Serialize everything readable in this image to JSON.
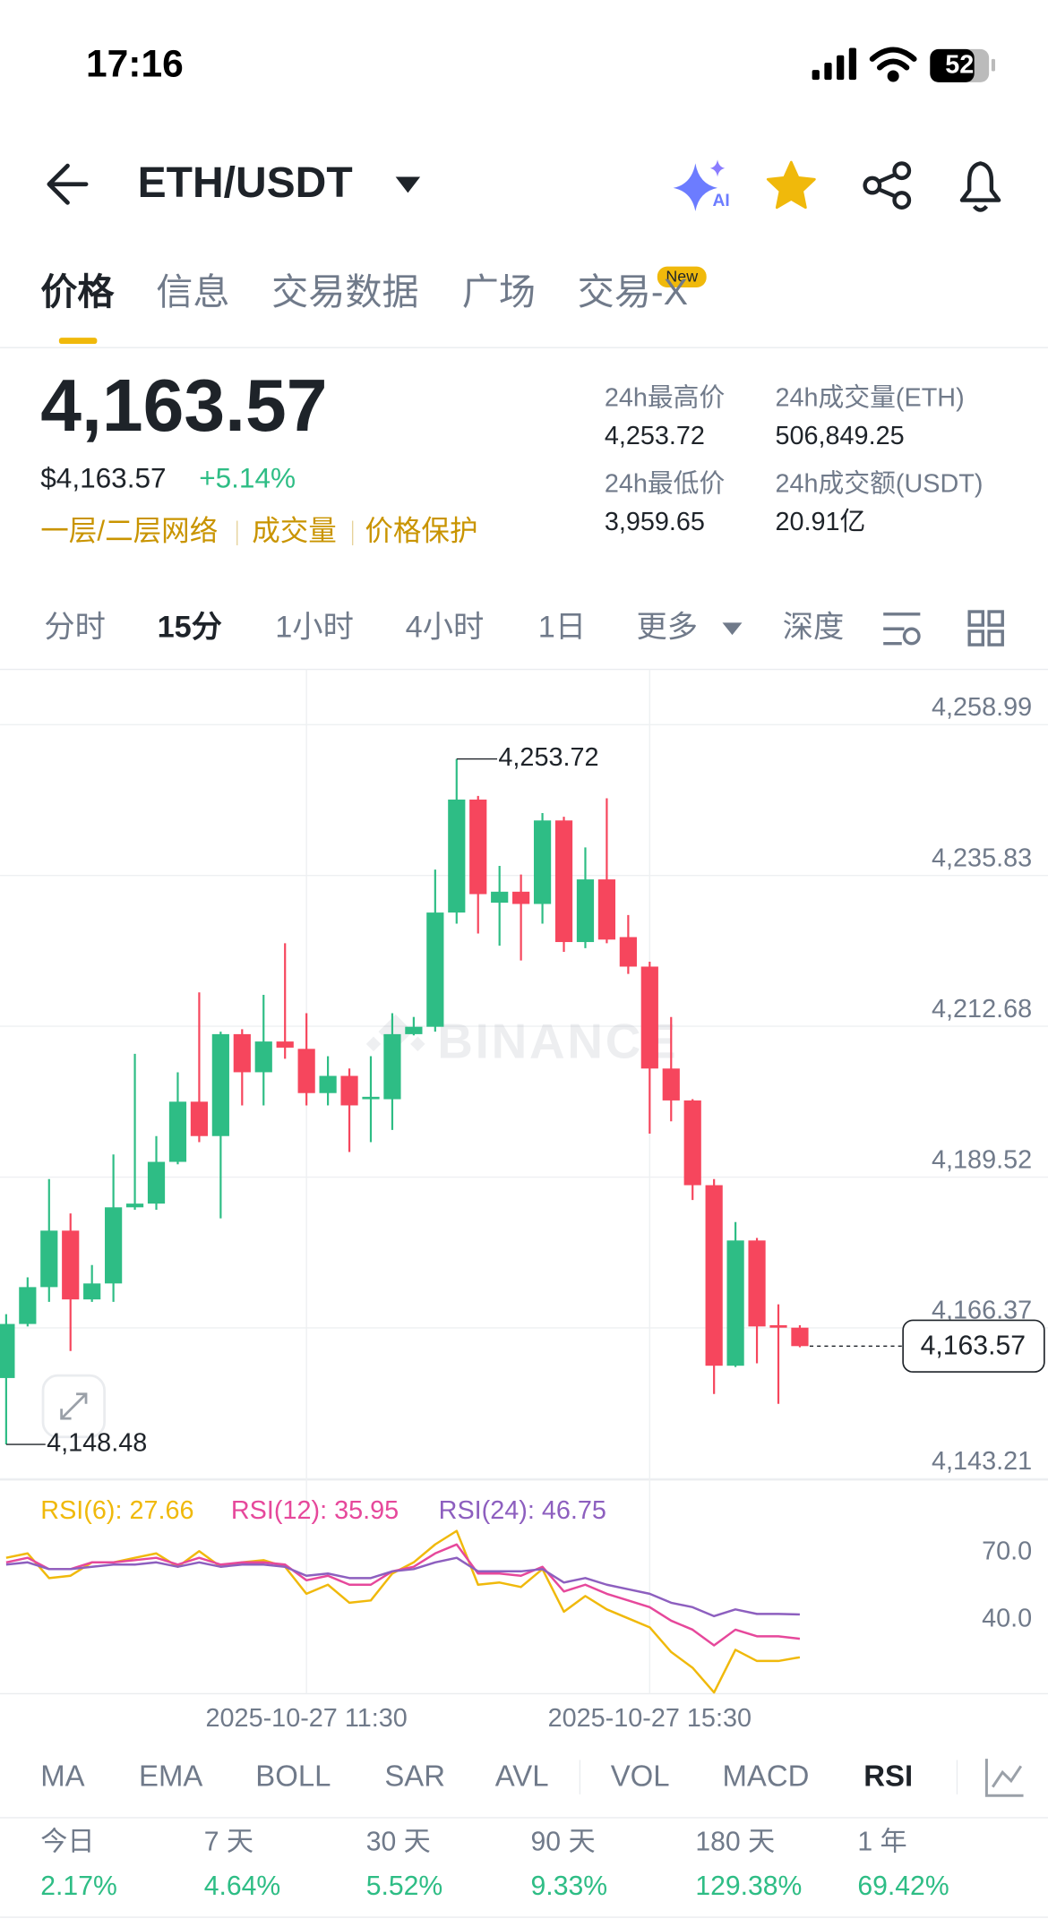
{
  "status_bar": {
    "time": "17:16",
    "battery": "52"
  },
  "header": {
    "pair": "ETH/USDT",
    "ai_badge": "AI"
  },
  "tabs": [
    "价格",
    "信息",
    "交易数据",
    "广场",
    "交易-X"
  ],
  "new_badge": "New",
  "price": {
    "last": "4,163.57",
    "usd": "$4,163.57",
    "change": "+5.14%",
    "tags": [
      "一层/二层网络",
      "成交量",
      "价格保护"
    ]
  },
  "stats": [
    {
      "label": "24h最高价",
      "value": "4,253.72"
    },
    {
      "label": "24h成交量(ETH)",
      "value": "506,849.25"
    },
    {
      "label": "24h最低价",
      "value": "3,959.65"
    },
    {
      "label": "24h成交额(USDT)",
      "value": "20.91亿"
    }
  ],
  "intervals": [
    "分时",
    "15分",
    "1小时",
    "4小时",
    "1日",
    "更多",
    "深度"
  ],
  "kline": {
    "type": "candlestick",
    "watermark": "BINANCE",
    "categories": [
      null,
      null,
      null,
      null,
      null,
      null,
      null,
      null,
      null,
      null,
      null,
      null,
      null,
      null,
      "2025-10-27 11:30",
      null,
      null,
      null,
      null,
      null,
      null,
      null,
      null,
      null,
      null,
      null,
      null,
      null,
      null,
      null,
      "2025-10-27 15:30",
      null,
      null,
      null,
      null,
      null,
      null,
      null
    ],
    "open": [
      4158.67,
      4166.97,
      4172.63,
      4181.3,
      4170.74,
      4173.19,
      4184.88,
      4185.45,
      4191.86,
      4201.1,
      4195.82,
      4211.47,
      4205.62,
      4210.34,
      4209.21,
      4202.42,
      4205.06,
      4201.48,
      4201.48,
      4211.47,
      4212.6,
      4230.14,
      4247.49,
      4231.65,
      4233.34,
      4231.46,
      4244.28,
      4225.61,
      4235.23,
      4226.37,
      4221.84,
      4206.19,
      4201.29,
      4188.28,
      4160.56,
      4179.79,
      4166.78,
      4166.4
    ],
    "high": [
      4168.48,
      4174.13,
      4189.22,
      4183.94,
      4176.02,
      4192.99,
      4208.45,
      4195.82,
      4205.62,
      4217.88,
      4211.85,
      4212.22,
      4217.5,
      4225.42,
      4214.68,
      4208.08,
      4206.19,
      4208.08,
      4214.68,
      4214.11,
      4236.74,
      4253.72,
      4248.05,
      4237.3,
      4235.98,
      4245.41,
      4244.85,
      4240.13,
      4247.68,
      4229.76,
      4222.6,
      4214.11,
      4201.48,
      4189.22,
      4182.62,
      4180.17,
      4169.99,
      4166.78
    ],
    "low": [
      4148.48,
      4166.59,
      4170.36,
      4162.82,
      4170.36,
      4170.36,
      4184.5,
      4184.5,
      4191.48,
      4194.88,
      4183.18,
      4200.53,
      4200.53,
      4207.7,
      4200.53,
      4200.53,
      4193.37,
      4194.88,
      4196.76,
      4211.28,
      4211.85,
      4228.44,
      4226.93,
      4225.05,
      4222.78,
      4228.44,
      4224.1,
      4224.67,
      4225.42,
      4220.71,
      4196.2,
      4198.08,
      4186.01,
      4156.22,
      4160.37,
      4160.93,
      4154.71,
      4163.39
    ],
    "close": [
      4166.97,
      4172.63,
      4181.3,
      4170.74,
      4173.19,
      4184.88,
      4185.45,
      4191.86,
      4201.1,
      4195.82,
      4211.47,
      4205.62,
      4210.34,
      4209.4,
      4202.42,
      4205.06,
      4200.53,
      4201.85,
      4211.47,
      4212.6,
      4230.14,
      4247.49,
      4232.97,
      4233.34,
      4231.46,
      4244.28,
      4225.61,
      4235.23,
      4225.99,
      4221.84,
      4206.19,
      4201.29,
      4188.28,
      4160.56,
      4179.79,
      4166.59,
      4166.4,
      4163.57
    ],
    "up_color": "#2ebd85",
    "down_color": "#f6465d",
    "ylim": [
      4143.21,
      4267.48
    ],
    "yticks": [
      {
        "value": 4143.21,
        "label": "4,143.21"
      },
      {
        "value": 4166.37,
        "label": "4,166.37"
      },
      {
        "value": 4189.52,
        "label": "4,189.52"
      },
      {
        "value": 4212.68,
        "label": "4,212.68"
      },
      {
        "value": 4235.83,
        "label": "4,235.83"
      },
      {
        "value": 4258.99,
        "label": "4,258.99"
      }
    ],
    "grid": true,
    "high_label": "4,253.72",
    "low_label": "4,148.48",
    "last_label": "4,163.57"
  },
  "rsi": {
    "type": "line",
    "ylim": [
      12,
      104
    ],
    "yticks": [
      {
        "value": 70,
        "label": "70.0"
      },
      {
        "value": 40,
        "label": "40.0"
      }
    ],
    "series": [
      {
        "name": "RSI(6)",
        "legend": "RSI(6): 27.66",
        "color": "#f0b90b",
        "values": [
          72,
          74,
          63,
          64,
          70,
          70,
          72,
          74,
          68,
          75,
          68,
          70,
          71,
          68,
          56,
          60,
          52,
          53,
          65,
          70,
          78,
          84,
          60,
          61,
          59,
          67,
          48,
          55,
          49,
          45,
          41,
          30,
          23,
          12,
          31,
          26,
          26,
          27.66
        ]
      },
      {
        "name": "RSI(12)",
        "legend": "RSI(12): 35.95",
        "color": "#e6489b",
        "values": [
          70,
          72,
          67,
          67,
          70,
          70,
          71,
          72,
          69,
          72,
          69,
          70,
          70,
          69,
          62,
          64,
          60,
          60,
          66,
          68,
          74,
          78,
          65,
          65,
          64,
          68,
          57,
          60,
          56,
          53,
          50,
          44,
          40,
          33,
          40,
          37,
          37,
          35.95
        ]
      },
      {
        "name": "RSI(24)",
        "legend": "RSI(24): 46.75",
        "color": "#8d5fbf",
        "values": [
          69,
          70,
          67,
          67,
          68,
          69,
          69,
          70,
          68,
          70,
          68,
          69,
          69,
          68,
          64,
          65,
          63,
          63,
          66,
          67,
          70,
          72,
          66,
          66,
          66,
          67,
          61,
          63,
          60,
          58,
          56,
          52,
          50,
          46,
          49,
          47,
          47,
          46.75
        ]
      }
    ]
  },
  "indicators": [
    "MA",
    "EMA",
    "BOLL",
    "SAR",
    "AVL",
    "VOL",
    "MACD",
    "RSI"
  ],
  "performance": [
    {
      "period": "今日",
      "change": "2.17%"
    },
    {
      "period": "7 天",
      "change": "4.64%"
    },
    {
      "period": "30 天",
      "change": "5.52%"
    },
    {
      "period": "90 天",
      "change": "9.33%"
    },
    {
      "period": "180 天",
      "change": "129.38%"
    },
    {
      "period": "1 年",
      "change": "69.42%"
    }
  ]
}
